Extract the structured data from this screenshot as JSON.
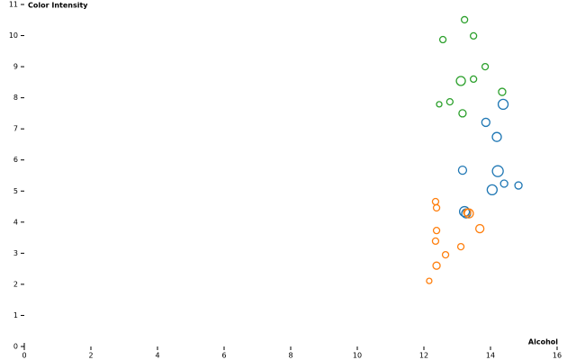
{
  "chart_data": {
    "type": "scatter",
    "x_label": "Alcohol",
    "y_label": "Color Intensity",
    "xlim": [
      0,
      16
    ],
    "xticks": [
      0,
      2,
      4,
      6,
      8,
      10,
      12,
      14,
      16
    ],
    "ylim": [
      0,
      11
    ],
    "yticks": [
      0,
      1,
      2,
      3,
      4,
      5,
      6,
      7,
      8,
      9,
      10,
      11
    ],
    "grid": false,
    "series": [
      {
        "color": "#2ca02c",
        "x": [
          13.22,
          12.57,
          13.49,
          13.84,
          13.49,
          13.11,
          14.35,
          12.78,
          12.46,
          13.16
        ],
        "values": [
          10.51,
          9.87,
          9.99,
          9.0,
          8.6,
          8.54,
          8.19,
          7.87,
          7.79,
          7.5
        ],
        "sizes": [
          3.5,
          3.5,
          3.5,
          3.5,
          3.5,
          5,
          4,
          3.5,
          3,
          4
        ]
      },
      {
        "color": "#1f77b4",
        "x": [
          14.38,
          13.86,
          14.19,
          13.16,
          14.22,
          14.41,
          14.84,
          14.05,
          13.22,
          13.27
        ],
        "values": [
          7.79,
          7.21,
          6.74,
          5.67,
          5.64,
          5.24,
          5.18,
          5.04,
          4.34,
          4.28
        ],
        "sizes": [
          5.5,
          4.5,
          5,
          4.5,
          6,
          4,
          4,
          5.5,
          5.5,
          5
        ]
      },
      {
        "color": "#ff7f0e",
        "x": [
          12.35,
          12.38,
          13.3,
          13.35,
          13.68,
          12.38,
          12.35,
          13.11,
          12.65,
          12.38,
          12.16
        ],
        "values": [
          4.66,
          4.46,
          4.31,
          4.28,
          3.79,
          3.73,
          3.39,
          3.21,
          2.95,
          2.6,
          2.11
        ],
        "sizes": [
          3.5,
          3.5,
          4,
          5,
          4.5,
          3.5,
          3.5,
          3.5,
          3.5,
          4,
          3
        ]
      }
    ]
  }
}
